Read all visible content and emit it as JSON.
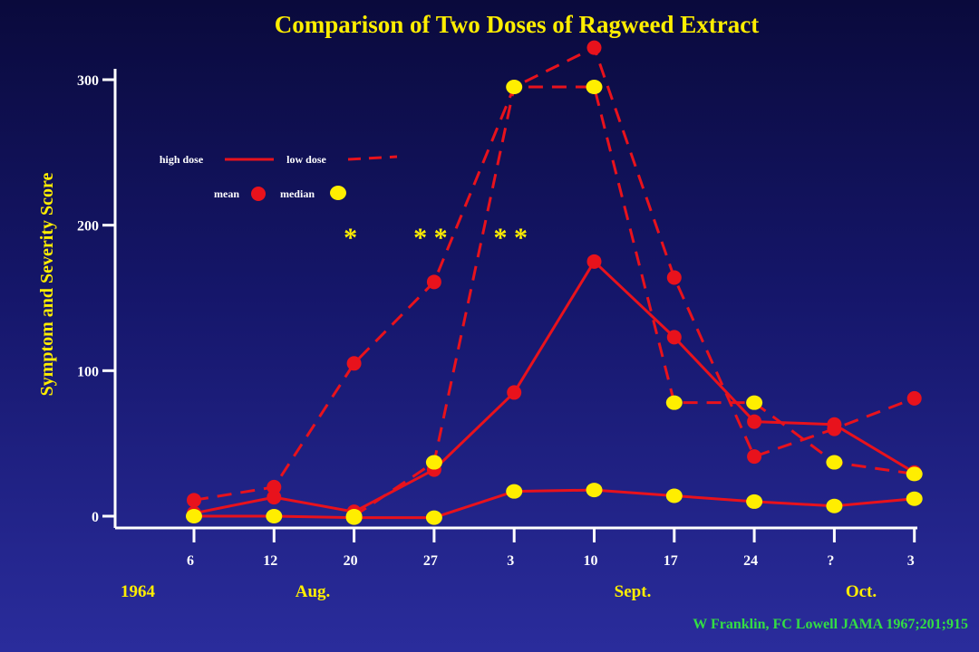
{
  "chart_data": {
    "type": "line",
    "title": "Comparison of Two Doses of Ragweed Extract",
    "ylabel": "Symptom and Severity Score",
    "ylim": [
      0,
      300
    ],
    "yticks": [
      0,
      100,
      200,
      300
    ],
    "x_tick_labels": [
      "6",
      "12",
      "20",
      "27",
      "3",
      "10",
      "17",
      "24",
      "?",
      "3"
    ],
    "month_labels": {
      "year": "1964",
      "aug": "Aug.",
      "sept": "Sept.",
      "oct": "Oct."
    },
    "legend": {
      "high_dose": "high dose",
      "low_dose": "low dose",
      "mean": "mean",
      "median": "median"
    },
    "annotations": [
      {
        "text": "*",
        "x_index": 2
      },
      {
        "text": "* *",
        "x_index": 3
      },
      {
        "text": "* *",
        "x_index": 4
      }
    ],
    "series": [
      {
        "dose": "high",
        "stat": "mean",
        "style": "solid",
        "marker_color": "#e8121c",
        "values": [
          2,
          13,
          3,
          32,
          85,
          175,
          123,
          65,
          63,
          30
        ]
      },
      {
        "dose": "high",
        "stat": "median",
        "style": "solid",
        "marker_color": "#ffee00",
        "values": [
          0,
          0,
          -1,
          -1,
          17,
          18,
          14,
          10,
          7,
          12
        ]
      },
      {
        "dose": "low",
        "stat": "mean",
        "style": "dashed",
        "marker_color": "#e8121c",
        "values": [
          11,
          20,
          105,
          161,
          295,
          322,
          164,
          41,
          60,
          81
        ]
      },
      {
        "dose": "low",
        "stat": "median",
        "style": "dashed",
        "marker_color": "#ffee00",
        "values": [
          null,
          null,
          0,
          37,
          295,
          295,
          78,
          78,
          37,
          29
        ]
      }
    ]
  },
  "colors": {
    "title": "#ffee00",
    "ylabel": "#ffee00",
    "axis": "#ffffff",
    "line": "#e8121c",
    "mean_marker": "#e8121c",
    "median_marker": "#ffee00",
    "month": "#ffee00",
    "citation": "#33dd44"
  },
  "citation": "W Franklin, FC Lowell JAMA 1967;201;915"
}
